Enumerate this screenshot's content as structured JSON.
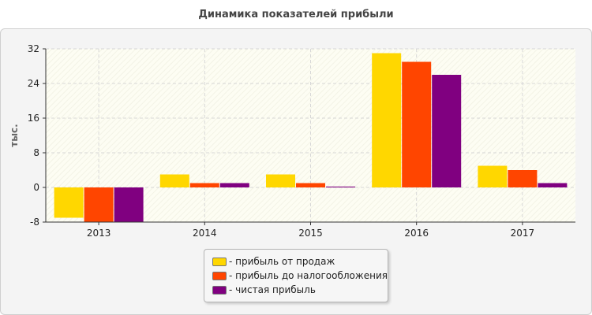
{
  "chart_data": {
    "type": "bar",
    "title": "Динамика показателей прибыли",
    "ylabel": "тыс.",
    "xlabel": "",
    "ylim": [
      -8,
      32
    ],
    "yticks": [
      -8,
      0,
      8,
      16,
      24,
      32
    ],
    "categories": [
      "2013",
      "2014",
      "2015",
      "2016",
      "2017"
    ],
    "series": [
      {
        "name": "- прибыль от продаж",
        "color": "#ffd700",
        "values": [
          -7,
          3,
          3,
          31,
          5
        ]
      },
      {
        "name": "- прибыль до налогообложения",
        "color": "#ff4500",
        "values": [
          -8,
          1,
          1,
          29,
          4
        ]
      },
      {
        "name": "- чистая прибыль",
        "color": "#800080",
        "values": [
          -8,
          1,
          0.2,
          26,
          1
        ]
      }
    ],
    "grid": true,
    "legend_position": "bottom"
  }
}
